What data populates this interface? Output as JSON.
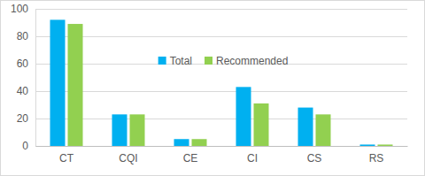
{
  "chart_data": {
    "type": "bar",
    "categories": [
      "CT",
      "CQI",
      "CE",
      "CI",
      "CS",
      "RS"
    ],
    "series": [
      {
        "name": "Total",
        "color": "#00b0f0",
        "values": [
          92,
          23,
          5,
          43,
          28,
          1
        ]
      },
      {
        "name": "Recommended",
        "color": "#92d050",
        "values": [
          89,
          23,
          5,
          31,
          23,
          1
        ]
      }
    ],
    "ylim": [
      0,
      100
    ],
    "yticks": [
      0,
      20,
      40,
      60,
      80,
      100
    ],
    "grid": true,
    "legend": "top"
  }
}
